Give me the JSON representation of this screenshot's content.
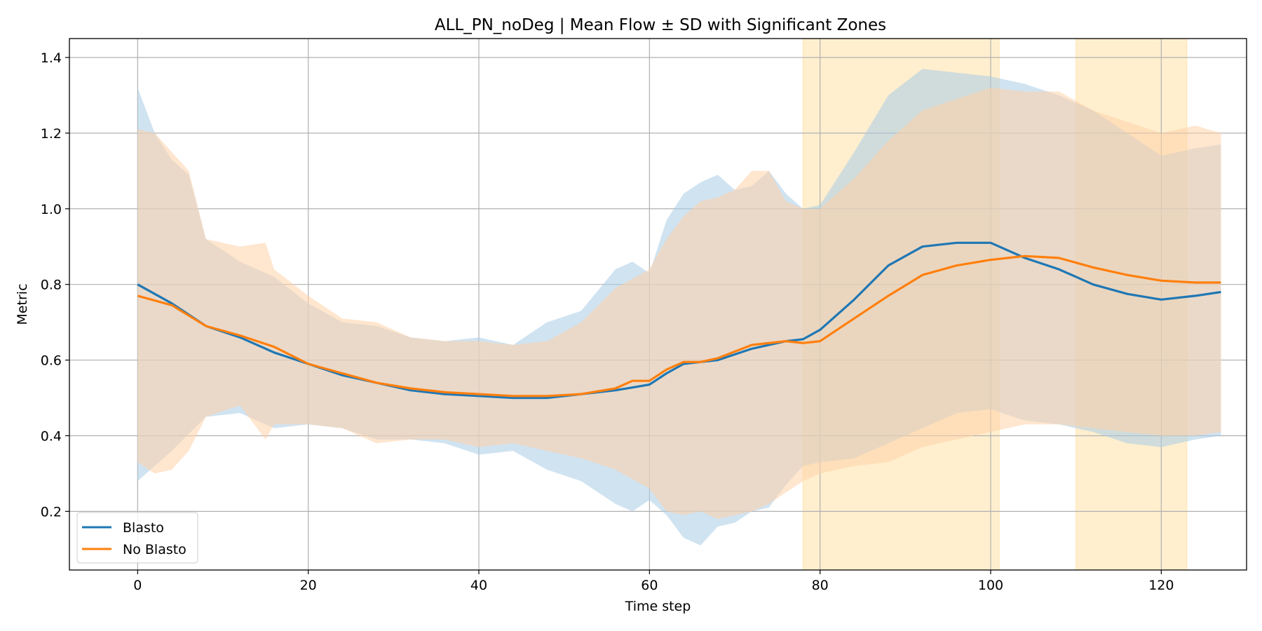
{
  "chart_data": {
    "type": "line",
    "title": "ALL_PN_noDeg | Mean Flow ± SD with Significant Zones",
    "xlabel": "Time step",
    "ylabel": "Metric",
    "xlim": [
      -8,
      130
    ],
    "ylim": [
      0.045,
      1.45
    ],
    "xticks": [
      0,
      20,
      40,
      60,
      80,
      100,
      120
    ],
    "yticks": [
      0.2,
      0.4,
      0.6,
      0.8,
      1.0,
      1.2,
      1.4
    ],
    "ytick_labels": [
      "0.2",
      "0.4",
      "0.6",
      "0.8",
      "1.0",
      "1.2",
      "1.4"
    ],
    "grid": true,
    "legend_position": "lower-left",
    "significant_zones": [
      [
        78,
        101
      ],
      [
        110,
        123
      ]
    ],
    "zone_color": "#ffd98a",
    "series": [
      {
        "name": "Blasto",
        "color": "#1f77b4",
        "band_color": "#a9cce6",
        "mean": [
          [
            0,
            0.8
          ],
          [
            4,
            0.75
          ],
          [
            8,
            0.69
          ],
          [
            12,
            0.66
          ],
          [
            16,
            0.62
          ],
          [
            20,
            0.59
          ],
          [
            24,
            0.56
          ],
          [
            28,
            0.54
          ],
          [
            32,
            0.52
          ],
          [
            36,
            0.51
          ],
          [
            40,
            0.505
          ],
          [
            44,
            0.5
          ],
          [
            48,
            0.5
          ],
          [
            52,
            0.51
          ],
          [
            56,
            0.52
          ],
          [
            60,
            0.535
          ],
          [
            62,
            0.565
          ],
          [
            64,
            0.59
          ],
          [
            66,
            0.595
          ],
          [
            68,
            0.6
          ],
          [
            72,
            0.63
          ],
          [
            76,
            0.65
          ],
          [
            78,
            0.655
          ],
          [
            80,
            0.68
          ],
          [
            84,
            0.76
          ],
          [
            88,
            0.85
          ],
          [
            92,
            0.9
          ],
          [
            96,
            0.91
          ],
          [
            100,
            0.91
          ],
          [
            104,
            0.87
          ],
          [
            108,
            0.84
          ],
          [
            112,
            0.8
          ],
          [
            116,
            0.775
          ],
          [
            120,
            0.76
          ],
          [
            124,
            0.77
          ],
          [
            127,
            0.78
          ]
        ],
        "upper": [
          [
            0,
            1.32
          ],
          [
            2,
            1.2
          ],
          [
            4,
            1.13
          ],
          [
            6,
            1.09
          ],
          [
            8,
            0.92
          ],
          [
            12,
            0.86
          ],
          [
            16,
            0.82
          ],
          [
            20,
            0.75
          ],
          [
            24,
            0.7
          ],
          [
            28,
            0.69
          ],
          [
            32,
            0.66
          ],
          [
            36,
            0.65
          ],
          [
            40,
            0.66
          ],
          [
            44,
            0.64
          ],
          [
            48,
            0.7
          ],
          [
            52,
            0.73
          ],
          [
            56,
            0.84
          ],
          [
            58,
            0.86
          ],
          [
            60,
            0.83
          ],
          [
            62,
            0.97
          ],
          [
            64,
            1.04
          ],
          [
            66,
            1.07
          ],
          [
            68,
            1.09
          ],
          [
            70,
            1.05
          ],
          [
            72,
            1.06
          ],
          [
            74,
            1.1
          ],
          [
            76,
            1.04
          ],
          [
            78,
            1.0
          ],
          [
            80,
            1.01
          ],
          [
            84,
            1.15
          ],
          [
            88,
            1.3
          ],
          [
            92,
            1.37
          ],
          [
            96,
            1.36
          ],
          [
            100,
            1.35
          ],
          [
            104,
            1.33
          ],
          [
            108,
            1.3
          ],
          [
            112,
            1.26
          ],
          [
            116,
            1.2
          ],
          [
            120,
            1.14
          ],
          [
            124,
            1.16
          ],
          [
            127,
            1.17
          ]
        ],
        "lower": [
          [
            0,
            0.28
          ],
          [
            4,
            0.36
          ],
          [
            8,
            0.45
          ],
          [
            12,
            0.46
          ],
          [
            16,
            0.42
          ],
          [
            20,
            0.43
          ],
          [
            24,
            0.42
          ],
          [
            28,
            0.39
          ],
          [
            32,
            0.39
          ],
          [
            36,
            0.38
          ],
          [
            40,
            0.35
          ],
          [
            44,
            0.36
          ],
          [
            48,
            0.31
          ],
          [
            52,
            0.28
          ],
          [
            56,
            0.22
          ],
          [
            58,
            0.2
          ],
          [
            60,
            0.23
          ],
          [
            62,
            0.19
          ],
          [
            64,
            0.13
          ],
          [
            66,
            0.11
          ],
          [
            68,
            0.16
          ],
          [
            70,
            0.17
          ],
          [
            72,
            0.2
          ],
          [
            74,
            0.21
          ],
          [
            76,
            0.27
          ],
          [
            78,
            0.32
          ],
          [
            80,
            0.33
          ],
          [
            84,
            0.34
          ],
          [
            88,
            0.38
          ],
          [
            92,
            0.42
          ],
          [
            96,
            0.46
          ],
          [
            100,
            0.47
          ],
          [
            104,
            0.44
          ],
          [
            108,
            0.43
          ],
          [
            112,
            0.41
          ],
          [
            116,
            0.38
          ],
          [
            120,
            0.37
          ],
          [
            124,
            0.39
          ],
          [
            127,
            0.4
          ]
        ]
      },
      {
        "name": "No Blasto",
        "color": "#ff7f0e",
        "band_color": "#ffd2a8",
        "mean": [
          [
            0,
            0.77
          ],
          [
            4,
            0.745
          ],
          [
            8,
            0.69
          ],
          [
            12,
            0.665
          ],
          [
            16,
            0.635
          ],
          [
            20,
            0.59
          ],
          [
            24,
            0.565
          ],
          [
            28,
            0.54
          ],
          [
            32,
            0.525
          ],
          [
            36,
            0.515
          ],
          [
            40,
            0.51
          ],
          [
            44,
            0.505
          ],
          [
            48,
            0.505
          ],
          [
            52,
            0.51
          ],
          [
            56,
            0.525
          ],
          [
            58,
            0.545
          ],
          [
            60,
            0.545
          ],
          [
            62,
            0.575
          ],
          [
            64,
            0.595
          ],
          [
            66,
            0.595
          ],
          [
            68,
            0.605
          ],
          [
            72,
            0.64
          ],
          [
            76,
            0.65
          ],
          [
            78,
            0.645
          ],
          [
            80,
            0.65
          ],
          [
            84,
            0.71
          ],
          [
            88,
            0.77
          ],
          [
            92,
            0.825
          ],
          [
            96,
            0.85
          ],
          [
            100,
            0.865
          ],
          [
            104,
            0.875
          ],
          [
            108,
            0.87
          ],
          [
            112,
            0.845
          ],
          [
            116,
            0.825
          ],
          [
            120,
            0.81
          ],
          [
            124,
            0.805
          ],
          [
            127,
            0.805
          ]
        ],
        "upper": [
          [
            0,
            1.21
          ],
          [
            2,
            1.2
          ],
          [
            4,
            1.15
          ],
          [
            6,
            1.1
          ],
          [
            8,
            0.92
          ],
          [
            12,
            0.9
          ],
          [
            15,
            0.91
          ],
          [
            16,
            0.84
          ],
          [
            20,
            0.77
          ],
          [
            24,
            0.71
          ],
          [
            28,
            0.7
          ],
          [
            32,
            0.66
          ],
          [
            36,
            0.65
          ],
          [
            40,
            0.65
          ],
          [
            44,
            0.64
          ],
          [
            48,
            0.65
          ],
          [
            52,
            0.7
          ],
          [
            56,
            0.79
          ],
          [
            60,
            0.84
          ],
          [
            62,
            0.92
          ],
          [
            64,
            0.98
          ],
          [
            66,
            1.02
          ],
          [
            68,
            1.03
          ],
          [
            70,
            1.05
          ],
          [
            72,
            1.1
          ],
          [
            74,
            1.1
          ],
          [
            76,
            1.02
          ],
          [
            78,
            1.0
          ],
          [
            80,
            1.0
          ],
          [
            84,
            1.08
          ],
          [
            88,
            1.18
          ],
          [
            92,
            1.26
          ],
          [
            96,
            1.29
          ],
          [
            100,
            1.32
          ],
          [
            104,
            1.31
          ],
          [
            108,
            1.31
          ],
          [
            112,
            1.26
          ],
          [
            116,
            1.23
          ],
          [
            120,
            1.2
          ],
          [
            124,
            1.22
          ],
          [
            127,
            1.2
          ]
        ],
        "lower": [
          [
            0,
            0.33
          ],
          [
            2,
            0.3
          ],
          [
            4,
            0.31
          ],
          [
            6,
            0.36
          ],
          [
            8,
            0.45
          ],
          [
            12,
            0.48
          ],
          [
            15,
            0.39
          ],
          [
            16,
            0.43
          ],
          [
            20,
            0.43
          ],
          [
            24,
            0.42
          ],
          [
            28,
            0.38
          ],
          [
            32,
            0.39
          ],
          [
            36,
            0.39
          ],
          [
            40,
            0.37
          ],
          [
            44,
            0.38
          ],
          [
            48,
            0.36
          ],
          [
            52,
            0.34
          ],
          [
            56,
            0.31
          ],
          [
            60,
            0.26
          ],
          [
            62,
            0.2
          ],
          [
            64,
            0.19
          ],
          [
            66,
            0.2
          ],
          [
            68,
            0.18
          ],
          [
            72,
            0.2
          ],
          [
            74,
            0.22
          ],
          [
            76,
            0.25
          ],
          [
            78,
            0.28
          ],
          [
            80,
            0.3
          ],
          [
            84,
            0.32
          ],
          [
            88,
            0.33
          ],
          [
            92,
            0.37
          ],
          [
            96,
            0.39
          ],
          [
            100,
            0.41
          ],
          [
            104,
            0.43
          ],
          [
            108,
            0.43
          ],
          [
            112,
            0.42
          ],
          [
            116,
            0.41
          ],
          [
            120,
            0.4
          ],
          [
            124,
            0.4
          ],
          [
            127,
            0.41
          ]
        ]
      }
    ]
  }
}
